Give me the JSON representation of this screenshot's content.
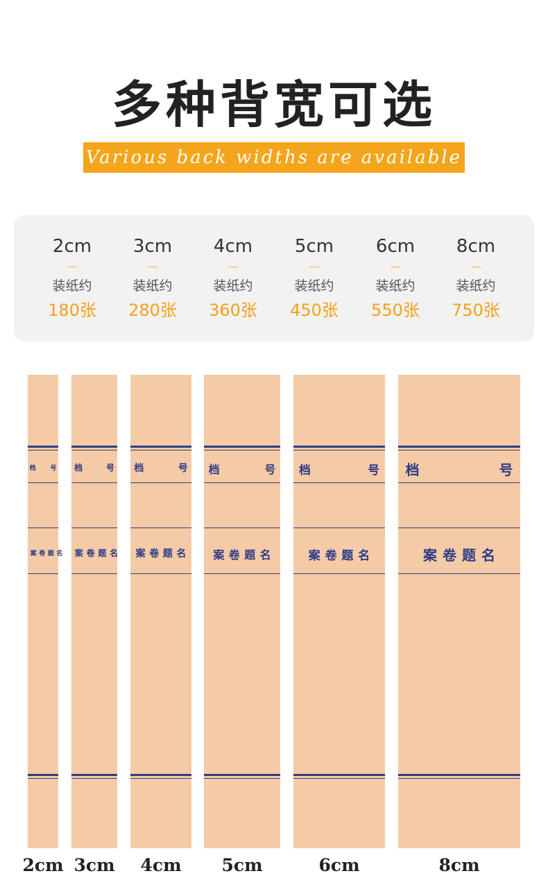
{
  "header": {
    "title": "多种背宽可选",
    "subtitle": "Various back widths are available"
  },
  "options": [
    {
      "width": "2cm",
      "label": "装纸约",
      "capacity": "180张"
    },
    {
      "width": "3cm",
      "label": "装纸约",
      "capacity": "280张"
    },
    {
      "width": "4cm",
      "label": "装纸约",
      "capacity": "360张"
    },
    {
      "width": "5cm",
      "label": "装纸约",
      "capacity": "450张"
    },
    {
      "width": "6cm",
      "label": "装纸约",
      "capacity": "550张"
    },
    {
      "width": "8cm",
      "label": "装纸约",
      "capacity": "750张"
    }
  ],
  "spine": {
    "archive": "档",
    "number": "号",
    "title": "案卷题名"
  }
}
